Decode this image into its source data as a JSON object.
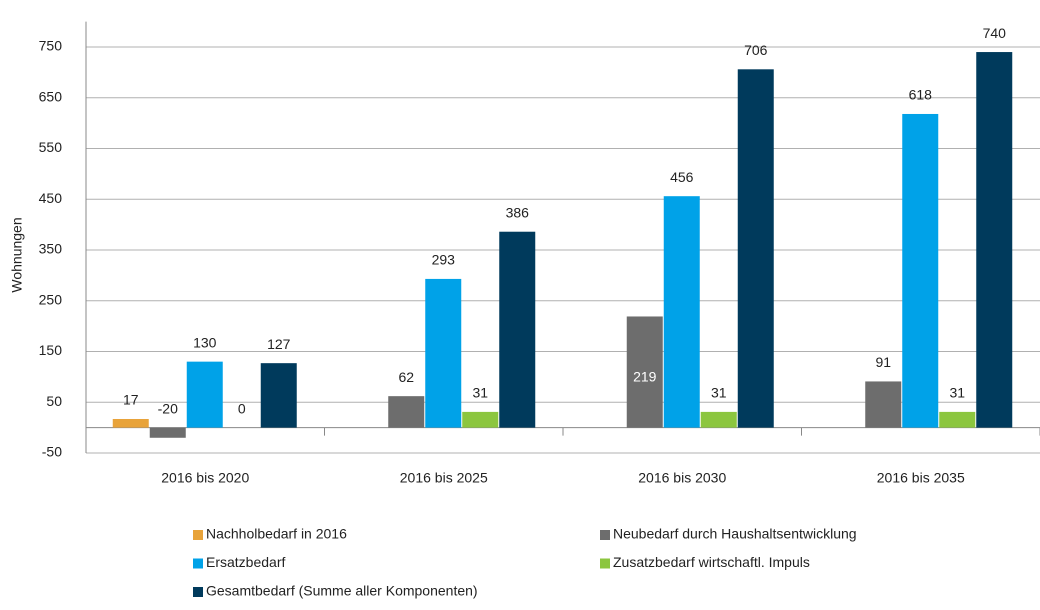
{
  "chart_data": {
    "type": "bar",
    "y_label": "Wohnungen",
    "categories": [
      "2016 bis 2020",
      "2016 bis 2025",
      "2016 bis 2030",
      "2016 bis 2035"
    ],
    "series": [
      {
        "name": "Nachholbedarf in 2016",
        "color": "#e8a33a",
        "values": [
          17,
          null,
          null,
          null
        ]
      },
      {
        "name": "Neubedarf durch Haushaltsentwicklung",
        "color": "#6d6d6d",
        "values": [
          -20,
          62,
          219,
          91
        ]
      },
      {
        "name": "Ersatzbedarf",
        "color": "#00a2e8",
        "values": [
          130,
          293,
          456,
          618
        ]
      },
      {
        "name": "Zusatzbedarf wirtschaftl. Impuls",
        "color": "#8cc63f",
        "values": [
          0,
          31,
          31,
          31
        ]
      },
      {
        "name": "Gesamtbedarf (Summe aller Komponenten)",
        "color": "#003a5c",
        "values": [
          127,
          386,
          706,
          740
        ]
      }
    ],
    "ylim": [
      -50,
      800
    ],
    "yticks": [
      -50,
      50,
      150,
      250,
      350,
      450,
      550,
      650,
      750
    ],
    "grid": true
  }
}
